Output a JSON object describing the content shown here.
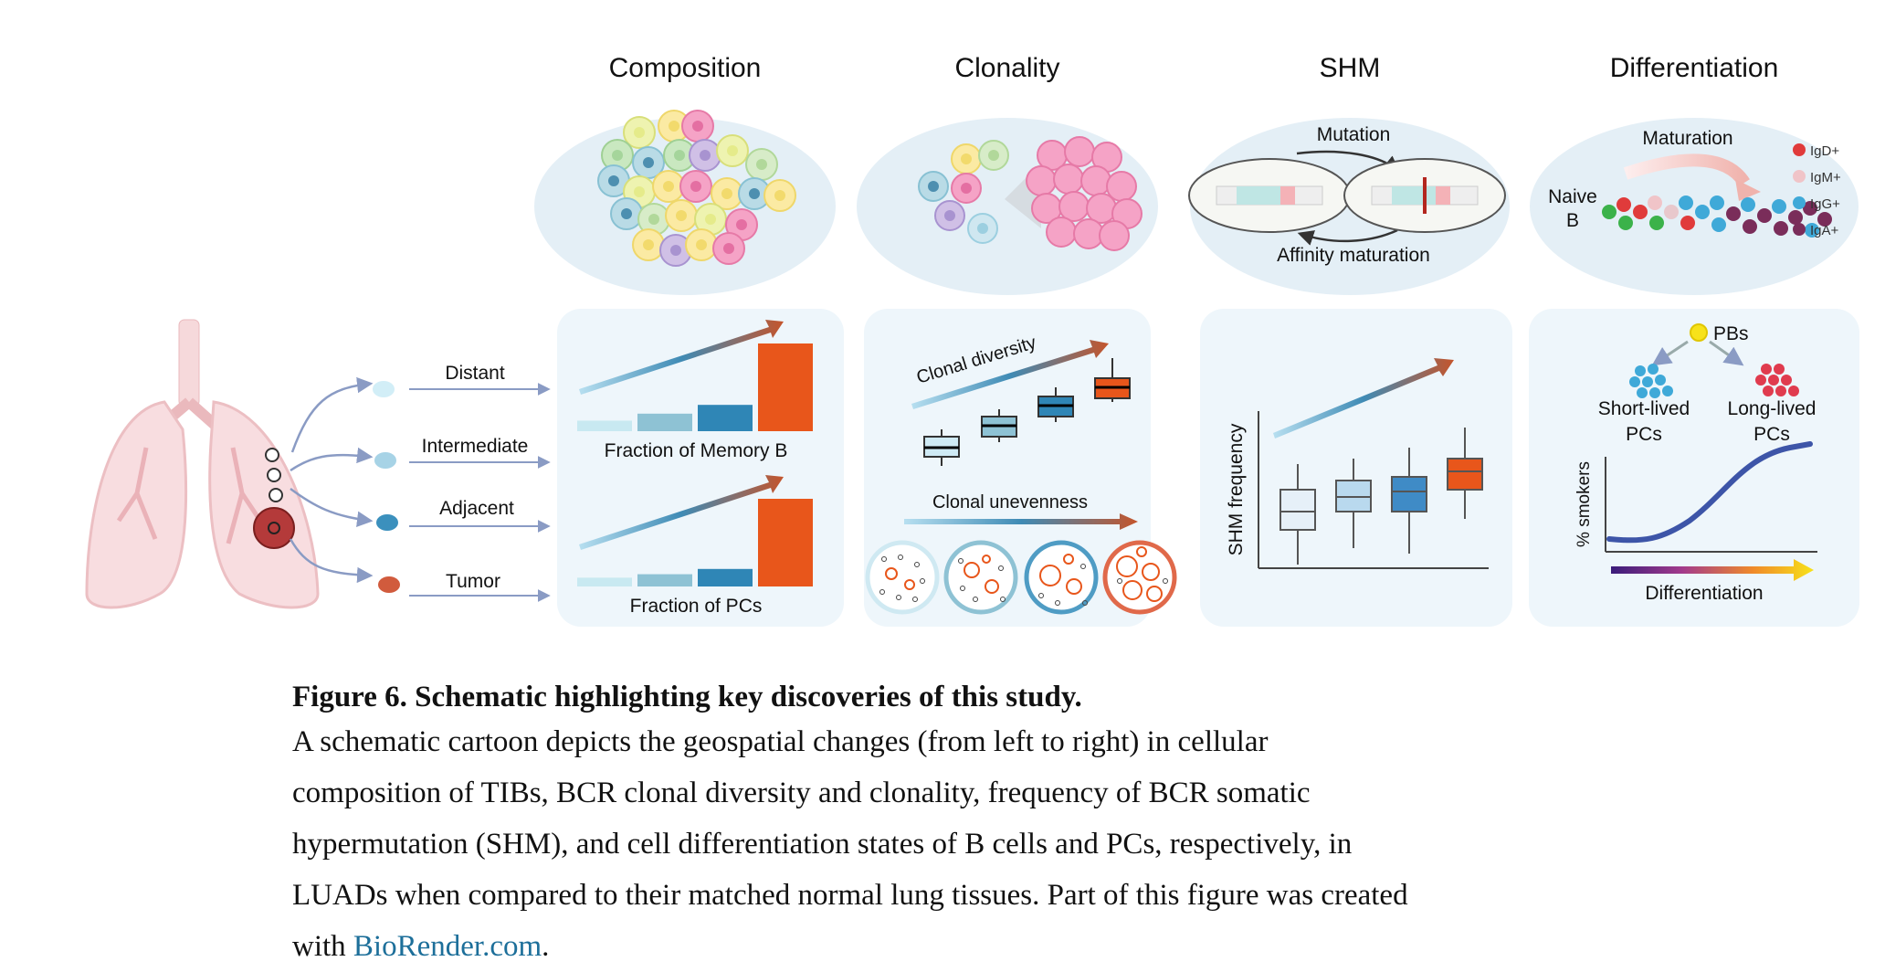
{
  "headers": [
    "Composition",
    "Clonality",
    "SHM",
    "Differentiation"
  ],
  "regions": [
    "Distant",
    "Intermediate",
    "Adjacent",
    "Tumor"
  ],
  "composition": {
    "label_memory": "Fraction of Memory B",
    "label_pcs": "Fraction of PCs",
    "memory_bars": [
      0.12,
      0.2,
      0.3,
      1.0
    ],
    "pc_bars": [
      0.1,
      0.14,
      0.2,
      1.0
    ]
  },
  "clonality": {
    "diversity_label": "Clonal diversity",
    "unevenness_label": "Clonal unevenness"
  },
  "shm": {
    "mutation_label": "Mutation",
    "affinity_label": "Affinity maturation",
    "axis_label": "SHM frequency"
  },
  "differentiation": {
    "maturation_label": "Maturation",
    "naive_label_1": "Naive",
    "naive_label_2": "B",
    "isotypes": [
      "IgD+",
      "IgM+",
      "IgG+",
      "IgA+"
    ],
    "pbs_label": "PBs",
    "short_lived_1": "Short-lived",
    "short_lived_2": "PCs",
    "long_lived_1": "Long-lived",
    "long_lived_2": "PCs",
    "y_label": "% smokers",
    "x_label": "Differentiation"
  },
  "colors": {
    "tier1": "#c8e9f1",
    "tier2": "#8ec2d4",
    "tier3": "#2f86b6",
    "tier4": "#e8561b",
    "panel_bg": "#eef6fb",
    "oval_bg": "#e4eff6"
  },
  "caption": {
    "title": "Figure 6. Schematic highlighting key discoveries of this study.",
    "line1": "A schematic cartoon depicts the geospatial changes (from left to right) in cellular",
    "line2": "composition of TIBs, BCR clonal diversity and clonality, frequency of BCR somatic",
    "line3": "hypermutation (SHM), and cell differentiation states of B cells and PCs, respectively, in",
    "line4": "LUADs when compared to their matched normal lung tissues. Part of this figure was created",
    "line5_pre": "with ",
    "link": "BioRender.com",
    "line5_post": "."
  }
}
